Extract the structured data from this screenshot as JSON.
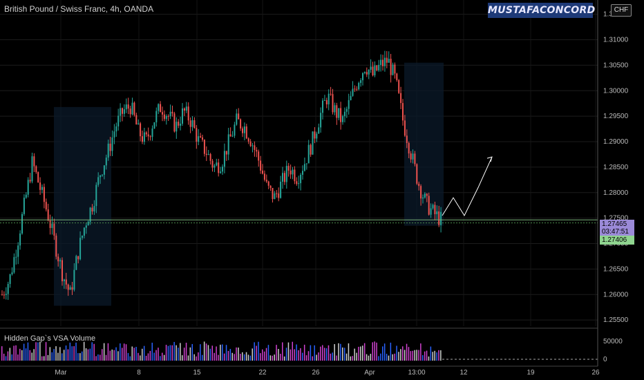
{
  "header": {
    "title": "British Pound / Swiss Franc, 4h, OANDA",
    "watermark": "MUSTAFACONCORD",
    "currency_badge": "CHF"
  },
  "price_tags": {
    "current_price": "1.27465",
    "countdown": "03:47:51",
    "second_price": "1.27406"
  },
  "indicator": {
    "label": "Hidden Gap`s VSA Volume",
    "yticks": [
      "50000",
      "0"
    ]
  },
  "colors": {
    "up": "#26a69a",
    "down": "#ef5350",
    "volume_profile": "#2962ff",
    "projection": "#ffffff"
  },
  "chart_data": {
    "type": "candlestick",
    "symbol": "GBPCHF",
    "timeframe": "4h",
    "y_ticks": [
      1.255,
      1.26,
      1.265,
      1.27,
      1.275,
      1.28,
      1.285,
      1.29,
      1.295,
      1.3,
      1.305,
      1.31,
      1.315
    ],
    "y_tick_labels": [
      "1.25500",
      "1.26000",
      "1.26500",
      "1.27000",
      "1.27500",
      "1.28000",
      "1.28500",
      "1.29000",
      "1.29500",
      "1.30000",
      "1.30500",
      "1.31000",
      "1.31500"
    ],
    "ylim": [
      1.2538,
      1.3178
    ],
    "x_tick_labels": [
      "Mar",
      "8",
      "15",
      "22",
      "26",
      "Apr",
      "13:00",
      "12",
      "19",
      "26"
    ],
    "close_path": [
      1.26,
      1.263,
      1.27,
      1.278,
      1.286,
      1.281,
      1.276,
      1.27,
      1.264,
      1.26,
      1.268,
      1.274,
      1.278,
      1.284,
      1.288,
      1.293,
      1.296,
      1.297,
      1.292,
      1.29,
      1.294,
      1.297,
      1.295,
      1.293,
      1.296,
      1.294,
      1.29,
      1.288,
      1.285,
      1.286,
      1.29,
      1.294,
      1.293,
      1.29,
      1.286,
      1.281,
      1.279,
      1.282,
      1.285,
      1.283,
      1.286,
      1.29,
      1.295,
      1.299,
      1.296,
      1.294,
      1.298,
      1.302,
      1.305,
      1.303,
      1.305,
      1.306,
      1.302,
      1.294,
      1.288,
      1.282,
      1.278,
      1.276,
      1.2747
    ],
    "projection_path": [
      1.2755,
      1.279,
      1.2755,
      1.281,
      1.287
    ],
    "price_lines": [
      1.27465,
      1.27406
    ],
    "last_price": 1.27465
  }
}
